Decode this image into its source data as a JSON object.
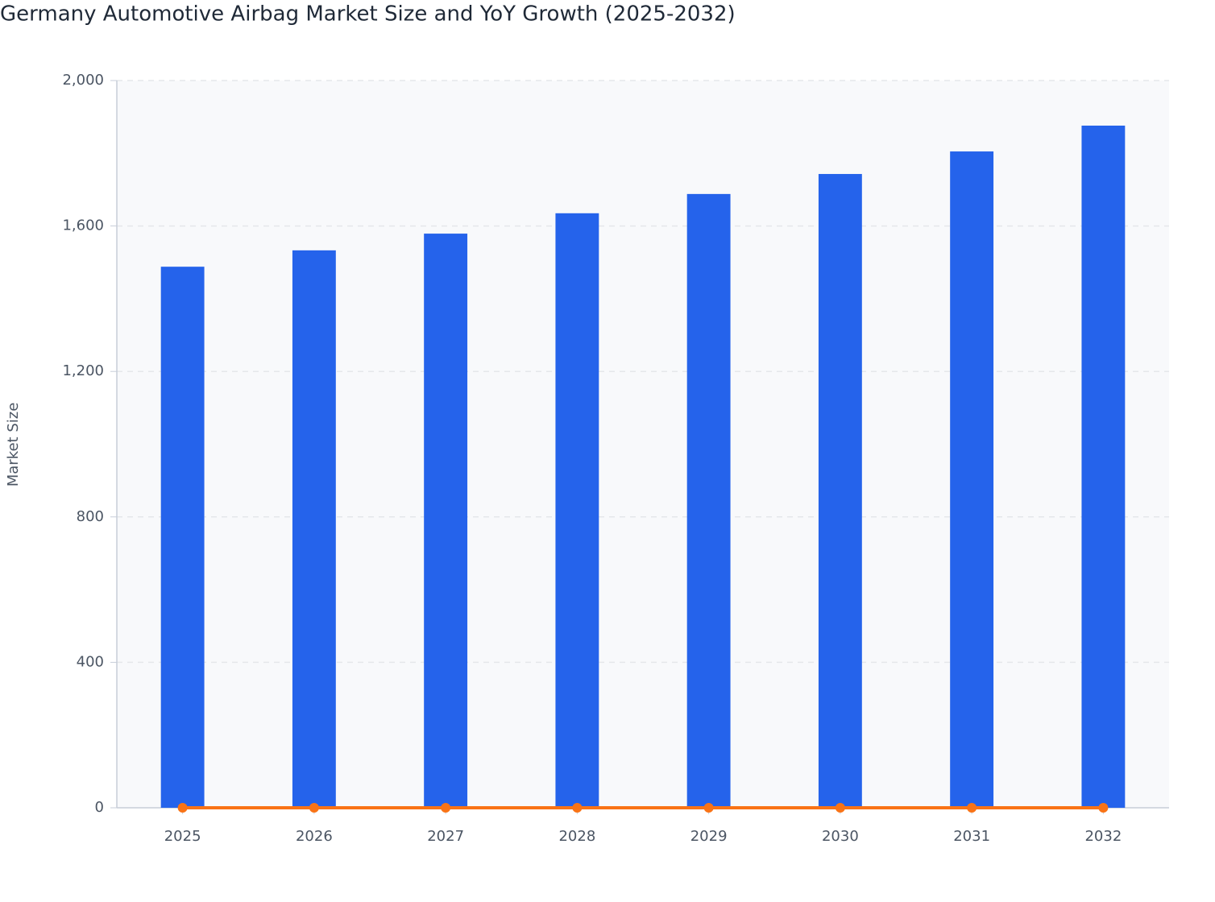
{
  "chart_data": {
    "type": "bar",
    "title": "Germany Automotive Airbag Market Size and YoY Growth (2025-2032)",
    "y_label": "Market Size",
    "categories": [
      "2025",
      "2026",
      "2027",
      "2028",
      "2029",
      "2030",
      "2031",
      "2032"
    ],
    "series": [
      {
        "type": "bar",
        "color": "#2563eb",
        "values": [
          1488,
          1533,
          1579,
          1635,
          1688,
          1743,
          1805,
          1876
        ]
      },
      {
        "type": "line",
        "color": "#f97316",
        "values": [
          0,
          0,
          0,
          0,
          0,
          0,
          0,
          0
        ]
      }
    ],
    "ylim": [
      0,
      2000
    ],
    "yticks": [
      0,
      {
        "value": 400,
        "label": "400"
      },
      {
        "value": 800,
        "label": "800"
      },
      {
        "value": 1200,
        "label": "1,200"
      },
      {
        "value": 1600,
        "label": "1,600"
      },
      {
        "value": 2000,
        "label": "2,000"
      }
    ],
    "grid": true
  }
}
